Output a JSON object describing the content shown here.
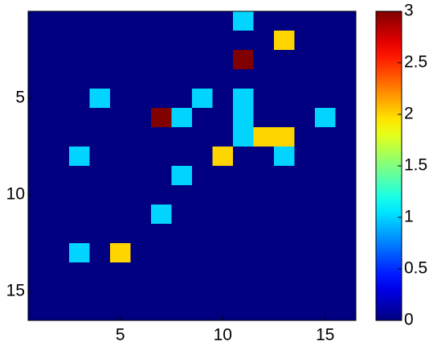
{
  "chart_data": {
    "type": "heatmap",
    "colormap": "jet",
    "z": [
      [
        0,
        0,
        0,
        0,
        0,
        0,
        0,
        0,
        0,
        0,
        1,
        0,
        0,
        0,
        0,
        0
      ],
      [
        0,
        0,
        0,
        0,
        0,
        0,
        0,
        0,
        0,
        0,
        0,
        0,
        2,
        0,
        0,
        0
      ],
      [
        0,
        0,
        0,
        0,
        0,
        0,
        0,
        0,
        0,
        0,
        3,
        0,
        0,
        0,
        0,
        0
      ],
      [
        0,
        0,
        0,
        0,
        0,
        0,
        0,
        0,
        0,
        0,
        0,
        0,
        0,
        0,
        0,
        0
      ],
      [
        0,
        0,
        0,
        1,
        0,
        0,
        0,
        0,
        1,
        0,
        1,
        0,
        0,
        0,
        0,
        0
      ],
      [
        0,
        0,
        0,
        0,
        0,
        0,
        3,
        1,
        0,
        0,
        1,
        0,
        0,
        0,
        1,
        0
      ],
      [
        0,
        0,
        0,
        0,
        0,
        0,
        0,
        0,
        0,
        0,
        1,
        2,
        2,
        0,
        0,
        0
      ],
      [
        0,
        0,
        1,
        0,
        0,
        0,
        0,
        0,
        0,
        2,
        0,
        0,
        1,
        0,
        0,
        0
      ],
      [
        0,
        0,
        0,
        0,
        0,
        0,
        0,
        1,
        0,
        0,
        0,
        0,
        0,
        0,
        0,
        0
      ],
      [
        0,
        0,
        0,
        0,
        0,
        0,
        0,
        0,
        0,
        0,
        0,
        0,
        0,
        0,
        0,
        0
      ],
      [
        0,
        0,
        0,
        0,
        0,
        0,
        1,
        0,
        0,
        0,
        0,
        0,
        0,
        0,
        0,
        0
      ],
      [
        0,
        0,
        0,
        0,
        0,
        0,
        0,
        0,
        0,
        0,
        0,
        0,
        0,
        0,
        0,
        0
      ],
      [
        0,
        0,
        1,
        0,
        2,
        0,
        0,
        0,
        0,
        0,
        0,
        0,
        0,
        0,
        0,
        0
      ],
      [
        0,
        0,
        0,
        0,
        0,
        0,
        0,
        0,
        0,
        0,
        0,
        0,
        0,
        0,
        0,
        0
      ],
      [
        0,
        0,
        0,
        0,
        0,
        0,
        0,
        0,
        0,
        0,
        0,
        0,
        0,
        0,
        0,
        0
      ],
      [
        0,
        0,
        0,
        0,
        0,
        0,
        0,
        0,
        0,
        0,
        0,
        0,
        0,
        0,
        0,
        0
      ]
    ],
    "xlim": [
      0.5,
      16.5
    ],
    "ylim": [
      0.5,
      16.5
    ],
    "y_reversed": true,
    "xticks": [
      5,
      10,
      15
    ],
    "yticks": [
      5,
      10,
      15
    ],
    "clim": [
      0,
      3
    ],
    "cticks": [
      0,
      0.5,
      1,
      1.5,
      2,
      2.5,
      3
    ]
  }
}
